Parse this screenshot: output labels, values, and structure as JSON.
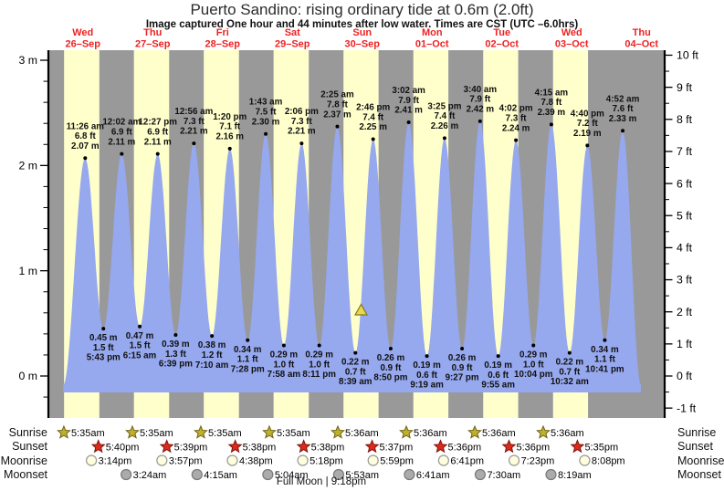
{
  "title": "Puerto Sandino: rising ordinary tide at 0.6m (2.0ft)",
  "subtitle": "Image captured One hour and 44 minutes after low water. Times are CST (UTC –6.0hrs)",
  "footer": "Full Moon | 9:18pm",
  "row_labels": {
    "sunrise": "Sunrise",
    "sunset": "Sunset",
    "moonrise": "Moonrise",
    "moonset": "Moonset"
  },
  "colors": {
    "day_band": "#FFFFCC",
    "night_band": "#999999",
    "water": "#96A8EE",
    "day_label": "#EE2222",
    "axis": "#000000",
    "event_text": "#111111",
    "sunrise_star_fill": "#C0B02C",
    "sunrise_star_stroke": "#6E6414",
    "sunset_star_fill": "#DD2A1B",
    "sunset_star_stroke": "#7A150C",
    "moonrise_fill": "#FFFFDE",
    "moonrise_stroke": "#979797",
    "moonset_fill": "#ABABAB",
    "moonset_stroke": "#787878",
    "marker_fill": "#E6D94F",
    "marker_stroke": "#857718"
  },
  "chart_data": {
    "type": "area",
    "title": "Puerto Sandino: rising ordinary tide at 0.6m (2.0ft)",
    "ylabel_left_unit": "m",
    "ylabel_right_unit": "ft",
    "y_axis_left": {
      "min": 0,
      "max": 3,
      "major_step": 1,
      "minor_step": 0.2
    },
    "y_axis_right": {
      "min": -1,
      "max": 10,
      "major_step": 1,
      "minor_step": 0.5
    },
    "days": [
      {
        "name": "Wed",
        "date": "26–Sep"
      },
      {
        "name": "Thu",
        "date": "27–Sep"
      },
      {
        "name": "Fri",
        "date": "28–Sep"
      },
      {
        "name": "Sat",
        "date": "29–Sep"
      },
      {
        "name": "Sun",
        "date": "30–Sep"
      },
      {
        "name": "Mon",
        "date": "01–Oct"
      },
      {
        "name": "Tue",
        "date": "02–Oct"
      },
      {
        "name": "Wed",
        "date": "03–Oct"
      },
      {
        "name": "Thu",
        "date": "04–Oct"
      }
    ],
    "tide_events": [
      {
        "kind": "high",
        "day": 0,
        "time": "11:26 am",
        "ft": "6.8",
        "m": "2.07"
      },
      {
        "kind": "low",
        "day": 0,
        "time": "5:43 pm",
        "ft": "1.5",
        "m": "0.45"
      },
      {
        "kind": "high",
        "day": 1,
        "time": "12:02 am",
        "ft": "6.9",
        "m": "2.11"
      },
      {
        "kind": "low",
        "day": 1,
        "time": "6:15 am",
        "ft": "1.5",
        "m": "0.47"
      },
      {
        "kind": "high",
        "day": 1,
        "time": "12:27 pm",
        "ft": "6.9",
        "m": "2.11"
      },
      {
        "kind": "low",
        "day": 1,
        "time": "6:39 pm",
        "ft": "1.3",
        "m": "0.39"
      },
      {
        "kind": "high",
        "day": 2,
        "time": "12:56 am",
        "ft": "7.3",
        "m": "2.21"
      },
      {
        "kind": "low",
        "day": 2,
        "time": "7:10 am",
        "ft": "1.2",
        "m": "0.38"
      },
      {
        "kind": "high",
        "day": 2,
        "time": "1:20 pm",
        "ft": "7.1",
        "m": "2.16"
      },
      {
        "kind": "low",
        "day": 2,
        "time": "7:28 pm",
        "ft": "1.1",
        "m": "0.34"
      },
      {
        "kind": "high",
        "day": 3,
        "time": "1:43 am",
        "ft": "7.5",
        "m": "2.30"
      },
      {
        "kind": "low",
        "day": 3,
        "time": "7:58 am",
        "ft": "1.0",
        "m": "0.29"
      },
      {
        "kind": "high",
        "day": 3,
        "time": "2:06 pm",
        "ft": "7.3",
        "m": "2.21"
      },
      {
        "kind": "low",
        "day": 3,
        "time": "8:11 pm",
        "ft": "1.0",
        "m": "0.29"
      },
      {
        "kind": "high",
        "day": 4,
        "time": "2:25 am",
        "ft": "7.8",
        "m": "2.37"
      },
      {
        "kind": "low",
        "day": 4,
        "time": "8:39 am",
        "ft": "0.7",
        "m": "0.22"
      },
      {
        "kind": "high",
        "day": 4,
        "time": "2:46 pm",
        "ft": "7.4",
        "m": "2.25"
      },
      {
        "kind": "low",
        "day": 4,
        "time": "8:50 pm",
        "ft": "0.9",
        "m": "0.26"
      },
      {
        "kind": "high",
        "day": 5,
        "time": "3:02 am",
        "ft": "7.9",
        "m": "2.41"
      },
      {
        "kind": "low",
        "day": 5,
        "time": "9:19 am",
        "ft": "0.6",
        "m": "0.19"
      },
      {
        "kind": "high",
        "day": 5,
        "time": "3:25 pm",
        "ft": "7.4",
        "m": "2.26"
      },
      {
        "kind": "low",
        "day": 5,
        "time": "9:27 pm",
        "ft": "0.9",
        "m": "0.26"
      },
      {
        "kind": "high",
        "day": 6,
        "time": "3:40 am",
        "ft": "7.9",
        "m": "2.42"
      },
      {
        "kind": "low",
        "day": 6,
        "time": "9:55 am",
        "ft": "0.6",
        "m": "0.19"
      },
      {
        "kind": "high",
        "day": 6,
        "time": "4:02 pm",
        "ft": "7.3",
        "m": "2.24"
      },
      {
        "kind": "low",
        "day": 6,
        "time": "10:04 pm",
        "ft": "1.0",
        "m": "0.29"
      },
      {
        "kind": "high",
        "day": 7,
        "time": "4:15 am",
        "ft": "7.8",
        "m": "2.39"
      },
      {
        "kind": "low",
        "day": 7,
        "time": "10:32 am",
        "ft": "0.7",
        "m": "0.22"
      },
      {
        "kind": "high",
        "day": 7,
        "time": "4:40 pm",
        "ft": "7.2",
        "m": "2.19"
      },
      {
        "kind": "low",
        "day": 7,
        "time": "10:41 pm",
        "ft": "1.1",
        "m": "0.34"
      },
      {
        "kind": "high",
        "day": 8,
        "time": "4:52 am",
        "ft": "7.6",
        "m": "2.33"
      }
    ],
    "marker": {
      "height_m": 0.6,
      "note": "current tide position"
    },
    "sun_moon": {
      "sunrise": [
        {
          "day": 0,
          "time": "5:35am"
        },
        {
          "day": 1,
          "time": "5:35am"
        },
        {
          "day": 2,
          "time": "5:35am"
        },
        {
          "day": 3,
          "time": "5:35am"
        },
        {
          "day": 4,
          "time": "5:36am"
        },
        {
          "day": 5,
          "time": "5:36am"
        },
        {
          "day": 6,
          "time": "5:36am"
        },
        {
          "day": 7,
          "time": "5:36am"
        }
      ],
      "sunset": [
        {
          "day": 0,
          "time": "5:40pm"
        },
        {
          "day": 1,
          "time": "5:39pm"
        },
        {
          "day": 2,
          "time": "5:38pm"
        },
        {
          "day": 3,
          "time": "5:38pm"
        },
        {
          "day": 4,
          "time": "5:37pm"
        },
        {
          "day": 5,
          "time": "5:36pm"
        },
        {
          "day": 6,
          "time": "5:36pm"
        },
        {
          "day": 7,
          "time": "5:35pm"
        }
      ],
      "moonrise": [
        {
          "day": 0,
          "time": "3:14pm"
        },
        {
          "day": 1,
          "time": "3:57pm"
        },
        {
          "day": 2,
          "time": "4:38pm"
        },
        {
          "day": 3,
          "time": "5:18pm"
        },
        {
          "day": 4,
          "time": "5:59pm"
        },
        {
          "day": 5,
          "time": "6:41pm"
        },
        {
          "day": 6,
          "time": "7:23pm"
        },
        {
          "day": 7,
          "time": "8:08pm"
        }
      ],
      "moonset": [
        {
          "day": 1,
          "time": "3:24am"
        },
        {
          "day": 2,
          "time": "4:15am"
        },
        {
          "day": 3,
          "time": "5:04am"
        },
        {
          "day": 4,
          "time": "5:53am"
        },
        {
          "day": 5,
          "time": "6:41am"
        },
        {
          "day": 6,
          "time": "7:30am"
        },
        {
          "day": 7,
          "time": "8:19am"
        }
      ]
    }
  }
}
